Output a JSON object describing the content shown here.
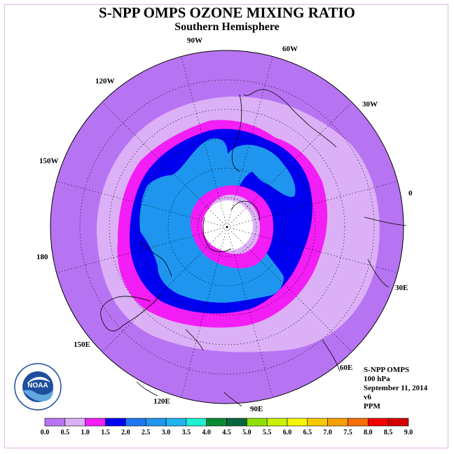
{
  "title": "S-NPP OMPS OZONE MIXING RATIO",
  "subtitle": "Southern Hemisphere",
  "longitude_labels": [
    "90W",
    "60W",
    "30W",
    "0",
    "30E",
    "60E",
    "90E",
    "120E",
    "150E",
    "180",
    "150W",
    "120W"
  ],
  "info": {
    "instrument": "S-NPP OMPS",
    "level": "100 hPa",
    "date": "September 11, 2014",
    "version": "v6",
    "units": "PPM"
  },
  "logo": {
    "text": "NOAA"
  },
  "colorbar": {
    "ticks": [
      "0.0",
      "0.5",
      "1.0",
      "1.5",
      "2.0",
      "2.5",
      "3.0",
      "3.5",
      "4.0",
      "4.5",
      "5.0",
      "5.5",
      "6.0",
      "6.5",
      "7.0",
      "7.5",
      "8.0",
      "8.5",
      "9.0"
    ],
    "colors": [
      "#b774f2",
      "#dcb0f7",
      "#f31df5",
      "#0000f0",
      "#1e78ef",
      "#1e96ef",
      "#1eb4ef",
      "#1ef0d0",
      "#0a8a34",
      "#07663e",
      "#8fe000",
      "#c8f000",
      "#f5f500",
      "#f5c800",
      "#f5a000",
      "#f56e00",
      "#f20000",
      "#d20000",
      "#7d4f40"
    ]
  },
  "colors": {
    "ocean_lowest": "#b774f2",
    "no_data": "#ffffff",
    "frame": "#e6b3e6"
  }
}
